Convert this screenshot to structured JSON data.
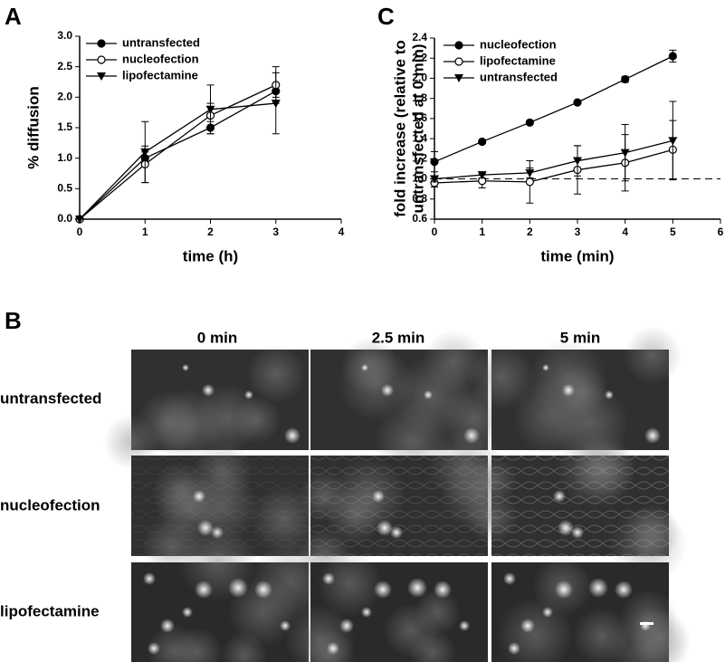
{
  "chart_data": [
    {
      "type": "line",
      "panel_label": "A",
      "xlabel": "time (h)",
      "ylabel": "% diffusion",
      "x": [
        0,
        1,
        2,
        3
      ],
      "xlim": [
        0,
        4
      ],
      "xticks": [
        0,
        1,
        2,
        3,
        4
      ],
      "ylim": [
        0,
        3
      ],
      "yticks": [
        {
          "value": 0,
          "label": "0.0"
        },
        {
          "value": 0.5,
          "label": "0.5"
        },
        {
          "value": 1,
          "label": "1.0"
        },
        {
          "value": 1.5,
          "label": "1.5"
        },
        {
          "value": 2,
          "label": "2.0"
        },
        {
          "value": 2.5,
          "label": "2.5"
        },
        {
          "value": 3,
          "label": "3.0"
        }
      ],
      "legend": "upper left",
      "series": [
        {
          "name": "untransfected",
          "color": "#000000",
          "marker": "filled-circle",
          "values": [
            0,
            1.0,
            1.5,
            2.1
          ],
          "errors": [
            0,
            0.1,
            0.1,
            0.1
          ]
        },
        {
          "name": "nucleofection",
          "color": "#000000",
          "marker": "open-circle",
          "values": [
            0,
            0.9,
            1.7,
            2.2
          ],
          "errors": [
            0,
            0.3,
            0.2,
            0.3
          ]
        },
        {
          "name": "lipofectamine",
          "color": "#000000",
          "marker": "triangle-down",
          "values": [
            0,
            1.1,
            1.8,
            1.9
          ],
          "errors": [
            0,
            0.5,
            0.4,
            0.5
          ]
        }
      ]
    },
    {
      "type": "line",
      "panel_label": "C",
      "xlabel": "time (min)",
      "ylabel": [
        "fold increase (relative to",
        "untransfected at 0 min)"
      ],
      "x": [
        0,
        1,
        2,
        3,
        4,
        5
      ],
      "xlim": [
        0,
        6
      ],
      "xticks": [
        0,
        1,
        2,
        3,
        4,
        5,
        6
      ],
      "ylim": [
        0.6,
        2.4
      ],
      "yticks": [
        0.6,
        0.8,
        {
          "value": 1,
          "label": "1.0"
        },
        1.2,
        1.4,
        1.6,
        1.8,
        {
          "value": 2,
          "label": "2.0"
        },
        2.2,
        2.4
      ],
      "legend": "upper left",
      "reference_line": {
        "value": 1,
        "style": "dashed"
      },
      "series": [
        {
          "name": "nucleofection",
          "color": "#000000",
          "marker": "filled-circle",
          "values": [
            1.17,
            1.37,
            1.56,
            1.76,
            1.99,
            2.22
          ],
          "errors": [
            0.1,
            0.02,
            0.02,
            0.01,
            0.03,
            0.06
          ]
        },
        {
          "name": "lipofectamine",
          "color": "#000000",
          "marker": "open-circle",
          "values": [
            0.96,
            0.98,
            0.97,
            1.09,
            1.16,
            1.29
          ],
          "errors": [
            0.04,
            0.07,
            0.21,
            0.24,
            0.28,
            0.29
          ]
        },
        {
          "name": "untransfected",
          "color": "#000000",
          "marker": "triangle-down",
          "values": [
            1.0,
            1.04,
            1.06,
            1.18,
            1.26,
            1.38
          ],
          "errors": [
            0.03,
            0.03,
            0.05,
            0.15,
            0.28,
            0.39
          ]
        }
      ]
    }
  ],
  "image_panel": {
    "panel_label": "B",
    "columns": [
      "0 min",
      "2.5 min",
      "5 min"
    ],
    "rows": [
      "untransfected",
      "nucleofection",
      "lipofectamine"
    ]
  }
}
